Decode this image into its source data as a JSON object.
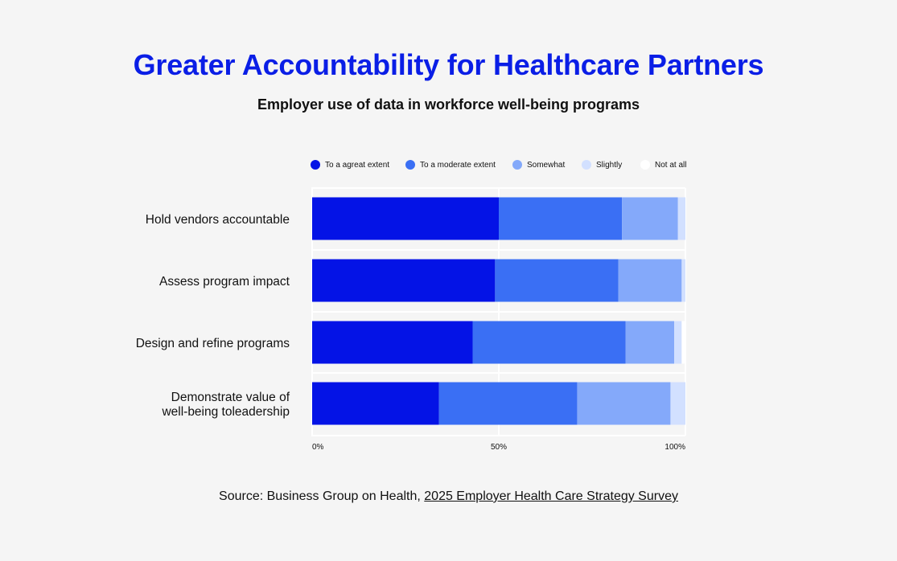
{
  "title": "Greater Accountability for Healthcare Partners",
  "subtitle": "Employer use of data in workforce well-being programs",
  "source": {
    "prefix": "Source: Business Group on Health, ",
    "link_text": "2025 Employer Health Care Strategy Survey"
  },
  "colors": {
    "background": "#f5f5f5",
    "title": "#0a1ee6",
    "grid": "#ffffff"
  },
  "chart_data": {
    "type": "bar",
    "orientation": "horizontal",
    "stacked": true,
    "categories": [
      "Hold vendors accountable",
      "Assess program impact",
      "Design and refine programs",
      "Demonstrate value of well-being toleadership"
    ],
    "category_lines": [
      [
        "Hold vendors accountable"
      ],
      [
        "Assess program impact"
      ],
      [
        "Design and refine programs"
      ],
      [
        "Demonstrate value of",
        "well-being toleadership"
      ]
    ],
    "series": [
      {
        "name": "To a agreat extent",
        "color": "#0413e6",
        "values": [
          50,
          49,
          43,
          34
        ]
      },
      {
        "name": "To a moderate extent",
        "color": "#3a6ff4",
        "values": [
          33,
          33,
          41,
          37
        ]
      },
      {
        "name": "Somewhat",
        "color": "#84a9fa",
        "values": [
          15,
          17,
          13,
          25
        ]
      },
      {
        "name": "Slightly",
        "color": "#d2e0ff",
        "values": [
          2,
          1,
          2,
          4
        ]
      },
      {
        "name": "Not at all",
        "color": "#ffffff",
        "values": [
          0,
          0,
          1,
          0
        ]
      }
    ],
    "xlim": [
      0,
      100
    ],
    "x_ticks": [
      0,
      50,
      100
    ],
    "x_tick_labels": [
      "0%",
      "50%",
      "100%"
    ],
    "grid": true,
    "legend_position": "top"
  }
}
